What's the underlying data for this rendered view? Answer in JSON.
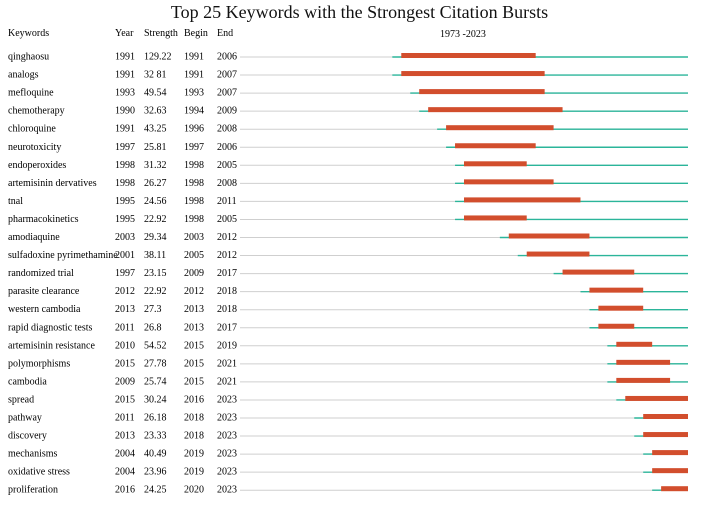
{
  "title": "Top 25 Keywords with the Strongest Citation Bursts",
  "colors": {
    "burst": "#d24e2d",
    "active": "#2bb59a",
    "inactive": "#cfcfcf"
  },
  "chart_data": {
    "type": "table",
    "title": "Top 25 Keywords with the Strongest Citation Bursts",
    "timeline_label": "1973 -2023",
    "timeline_range": [
      1973,
      2023
    ],
    "columns": [
      "Keywords",
      "Year",
      "Strength",
      "Begin",
      "End"
    ],
    "rows": [
      {
        "keyword": "qinghaosu",
        "year": "1991",
        "strength": "129.22",
        "begin": "1991",
        "end": "2006",
        "b": 1991,
        "e": 2006
      },
      {
        "keyword": "analogs",
        "year": "1991",
        "strength": "32 81",
        "begin": "1991",
        "end": "2007",
        "b": 1991,
        "e": 2007
      },
      {
        "keyword": "mefloquine",
        "year": "1993",
        "strength": "49.54",
        "begin": "1993",
        "end": "2007",
        "b": 1993,
        "e": 2007
      },
      {
        "keyword": "chemotherapy",
        "year": "1990",
        "strength": "32.63",
        "begin": "1994",
        "end": "2009",
        "b": 1994,
        "e": 2009
      },
      {
        "keyword": "chloroquine",
        "year": "1991",
        "strength": "43.25",
        "begin": "1996",
        "end": "2008",
        "b": 1996,
        "e": 2008
      },
      {
        "keyword": "neurotoxicity",
        "year": "1997",
        "strength": "25.81",
        "begin": "1997",
        "end": "2006",
        "b": 1997,
        "e": 2006
      },
      {
        "keyword": "endoperoxides",
        "year": "1998",
        "strength": "31.32",
        "begin": "1998",
        "end": "2005",
        "b": 1998,
        "e": 2005
      },
      {
        "keyword": "artemisinin dervatives",
        "year": "1998",
        "strength": "26.27",
        "begin": "1998",
        "end": "2008",
        "b": 1998,
        "e": 2008
      },
      {
        "keyword": "tnal",
        "year": "1995",
        "strength": "24.56",
        "begin": "1998",
        "end": "2011",
        "b": 1998,
        "e": 2011
      },
      {
        "keyword": "pharmacokinetics",
        "year": "1995",
        "strength": "22.92",
        "begin": "1998",
        "end": "2005",
        "b": 1998,
        "e": 2005
      },
      {
        "keyword": "amodiaquine",
        "year": "2003",
        "strength": "29.34",
        "begin": "2003",
        "end": "2012",
        "b": 2003,
        "e": 2012
      },
      {
        "keyword": "sulfadoxine pyrimethamine",
        "year": "2001",
        "strength": "38.11",
        "begin": "2005",
        "end": "2012",
        "b": 2005,
        "e": 2012
      },
      {
        "keyword": "randomized trial",
        "year": "1997",
        "strength": "23.15",
        "begin": "2009",
        "end": "2017",
        "b": 2009,
        "e": 2017
      },
      {
        "keyword": "parasite clearance",
        "year": "2012",
        "strength": "22.92",
        "begin": "2012",
        "end": "2018",
        "b": 2012,
        "e": 2018
      },
      {
        "keyword": "western cambodia",
        "year": "2013",
        "strength": "27.3",
        "begin": "2013",
        "end": "2018",
        "b": 2013,
        "e": 2018
      },
      {
        "keyword": "rapid diagnostic tests",
        "year": "2011",
        "strength": "26.8",
        "begin": "2013",
        "end": "2017",
        "b": 2013,
        "e": 2017
      },
      {
        "keyword": "artemisinin resistance",
        "year": "2010",
        "strength": "54.52",
        "begin": "2015",
        "end": "2019",
        "b": 2015,
        "e": 2019
      },
      {
        "keyword": "polymorphisms",
        "year": "2015",
        "strength": "27.78",
        "begin": "2015",
        "end": "2021",
        "b": 2015,
        "e": 2021
      },
      {
        "keyword": "cambodia",
        "year": "2009",
        "strength": "25.74",
        "begin": "2015",
        "end": "2021",
        "b": 2015,
        "e": 2021
      },
      {
        "keyword": "spread",
        "year": "2015",
        "strength": "30.24",
        "begin": "2016",
        "end": "2023",
        "b": 2016,
        "e": 2023
      },
      {
        "keyword": "pathway",
        "year": "2011",
        "strength": "26.18",
        "begin": "2018",
        "end": "2023",
        "b": 2018,
        "e": 2023
      },
      {
        "keyword": "discovery",
        "year": "2013",
        "strength": "23.33",
        "begin": "2018",
        "end": "2023",
        "b": 2018,
        "e": 2023
      },
      {
        "keyword": "mechanisms",
        "year": "2004",
        "strength": "40.49",
        "begin": "2019",
        "end": "2023",
        "b": 2019,
        "e": 2023
      },
      {
        "keyword": "oxidative stress",
        "year": "2004",
        "strength": "23.96",
        "begin": "2019",
        "end": "2023",
        "b": 2019,
        "e": 2023
      },
      {
        "keyword": "proliferation",
        "year": "2016",
        "strength": "24.25",
        "begin": "2020",
        "end": "2023",
        "b": 2020,
        "e": 2023
      }
    ]
  }
}
